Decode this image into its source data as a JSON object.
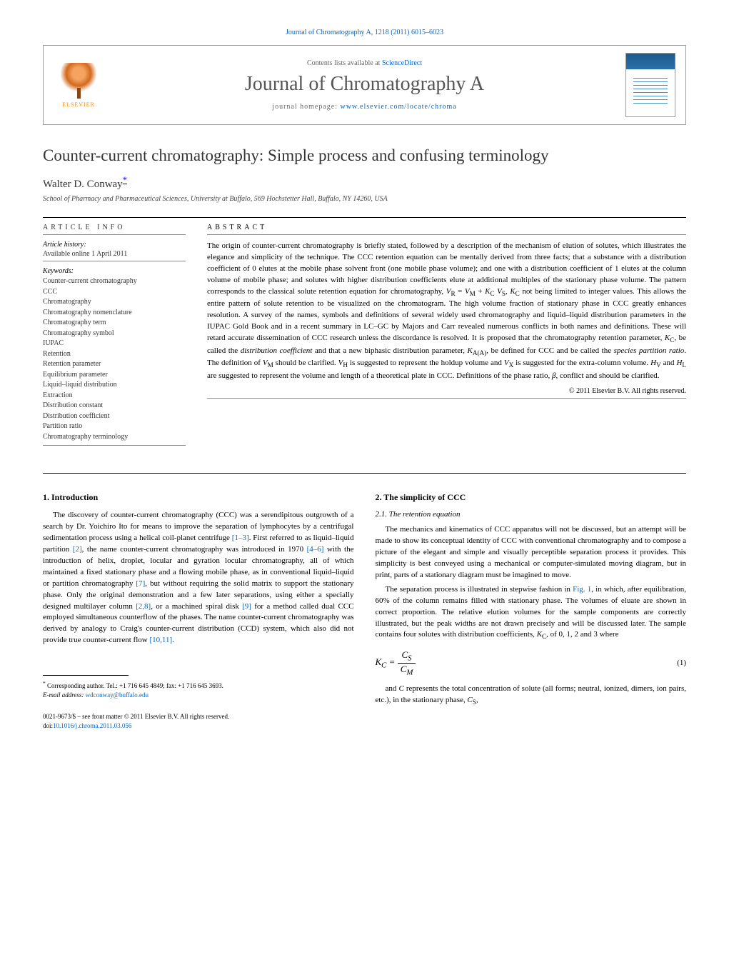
{
  "colors": {
    "link": "#0066cc",
    "text": "#000000",
    "muted": "#666666",
    "heading": "#333333",
    "elsevier_orange": "#ff8c00",
    "background": "#ffffff"
  },
  "typography": {
    "body_fontsize": 11,
    "title_fontsize": 23,
    "journal_title_fontsize": 28,
    "abstract_fontsize": 11,
    "footnote_fontsize": 9,
    "font_family": "Georgia, Times New Roman, serif"
  },
  "header": {
    "journal_ref": "Journal of Chromatography A, 1218 (2011) 6015–6023",
    "contents_prefix": "Contents lists available at ",
    "contents_link": "ScienceDirect",
    "journal_title": "Journal of Chromatography A",
    "homepage_prefix": "journal homepage: ",
    "homepage_link": "www.elsevier.com/locate/chroma",
    "publisher": "ELSEVIER"
  },
  "article": {
    "title": "Counter-current chromatography: Simple process and confusing terminology",
    "author": "Walter D. Conway",
    "author_marker": "*",
    "affiliation": "School of Pharmacy and Pharmaceutical Sciences, University at Buffalo, 569 Hochstetter Hall, Buffalo, NY 14260, USA"
  },
  "article_info": {
    "heading": "ARTICLE INFO",
    "history_label": "Article history:",
    "history_text": "Available online 1 April 2011",
    "keywords_label": "Keywords:",
    "keywords": [
      "Counter-current chromatography",
      "CCC",
      "Chromatography",
      "Chromatography nomenclature",
      "Chromatography term",
      "Chromatography symbol",
      "IUPAC",
      "Retention",
      "Retention parameter",
      "Equilibrium parameter",
      "Liquid–liquid distribution",
      "Extraction",
      "Distribution constant",
      "Distribution coefficient",
      "Partition ratio",
      "Chromatography terminology"
    ]
  },
  "abstract": {
    "heading": "ABSTRACT",
    "text": "The origin of counter-current chromatography is briefly stated, followed by a description of the mechanism of elution of solutes, which illustrates the elegance and simplicity of the technique. The CCC retention equation can be mentally derived from three facts; that a substance with a distribution coefficient of 0 elutes at the mobile phase solvent front (one mobile phase volume); and one with a distribution coefficient of 1 elutes at the column volume of mobile phase; and solutes with higher distribution coefficients elute at additional multiples of the stationary phase volume. The pattern corresponds to the classical solute retention equation for chromatography, V_R = V_M + K_C V_S, K_C not being limited to integer values. This allows the entire pattern of solute retention to be visualized on the chromatogram. The high volume fraction of stationary phase in CCC greatly enhances resolution. A survey of the names, symbols and definitions of several widely used chromatography and liquid–liquid distribution parameters in the IUPAC Gold Book and in a recent summary in LC–GC by Majors and Carr revealed numerous conflicts in both names and definitions. These will retard accurate dissemination of CCC research unless the discordance is resolved. It is proposed that the chromatography retention parameter, K_C, be called the distribution coefficient and that a new biphasic distribution parameter, K_A(A), be defined for CCC and be called the species partition ratio. The definition of V_M should be clarified. V_H is suggested to represent the holdup volume and V_X is suggested for the extra-column volume. H_V and H_L are suggested to represent the volume and length of a theoretical plate in CCC. Definitions of the phase ratio, β, conflict and should be clarified.",
    "copyright": "© 2011 Elsevier B.V. All rights reserved."
  },
  "sections": {
    "s1": {
      "heading": "1. Introduction",
      "p1": "The discovery of counter-current chromatography (CCC) was a serendipitous outgrowth of a search by Dr. Yoichiro Ito for means to improve the separation of lymphocytes by a centrifugal sedimentation process using a helical coil-planet centrifuge [1–3]. First referred to as liquid–liquid partition [2], the name counter-current chromatography was introduced in 1970 [4–6] with the introduction of helix, droplet, locular and gyration locular chromatography, all of which maintained a fixed stationary phase and a flowing mobile phase, as in conventional liquid–liquid or partition chromatography [7], but without requiring the solid matrix to support the stationary phase. Only the original demonstration and a few later separations, using either a specially designed multilayer column [2,8], or a machined spiral disk [9] for a method called dual CCC employed simultaneous counterflow of the phases. The name counter-current chromatography was derived by analogy to Craig's counter-current distribution (CCD) system, which also did not provide true counter-current flow [10,11]."
    },
    "s2": {
      "heading": "2. The simplicity of CCC",
      "sub1": {
        "heading": "2.1. The retention equation",
        "p1": "The mechanics and kinematics of CCC apparatus will not be discussed, but an attempt will be made to show its conceptual identity of CCC with conventional chromatography and to compose a picture of the elegant and simple and visually perceptible separation process it provides. This simplicity is best conveyed using a mechanical or computer-simulated moving diagram, but in print, parts of a stationary diagram must be imagined to move.",
        "p2": "The separation process is illustrated in stepwise fashion in Fig. 1, in which, after equilibration, 60% of the column remains filled with stationary phase. The volumes of eluate are shown in correct proportion. The relative elution volumes for the sample components are correctly illustrated, but the peak widths are not drawn precisely and will be discussed later. The sample contains four solutes with distribution coefficients, K_C, of 0, 1, 2 and 3 where",
        "p3": "and C represents the total concentration of solute (all forms; neutral, ionized, dimers, ion pairs, etc.), in the stationary phase, C_S,"
      }
    }
  },
  "equation": {
    "lhs": "K_C",
    "num": "C_S",
    "den": "C_M",
    "number": "(1)"
  },
  "footnote": {
    "marker": "*",
    "text": "Corresponding author. Tel.: +1 716 645 4849; fax: +1 716 645 3693.",
    "email_label": "E-mail address:",
    "email": "wdconway@buffalo.edu"
  },
  "footer": {
    "issn_line": "0021-9673/$ – see front matter © 2011 Elsevier B.V. All rights reserved.",
    "doi_label": "doi:",
    "doi": "10.1016/j.chroma.2011.03.056"
  }
}
